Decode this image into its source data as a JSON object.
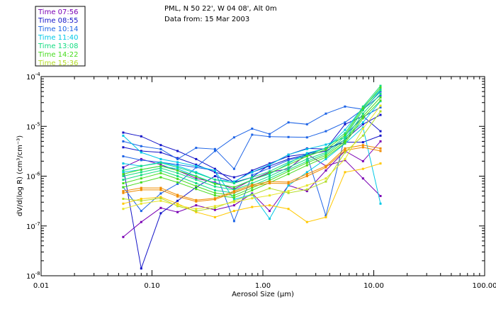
{
  "chart_data": {
    "type": "line",
    "title_line1": "PML, N 50 22', W 04 08', Alt 0m",
    "title_line2": "Data from: 15 Mar 2003",
    "xlabel": "Aerosol Size (μm)",
    "ylabel": "dV/d(log R) (cm³/cm⁻³)",
    "x_scale": "log",
    "y_scale": "log",
    "xlim": [
      0.01,
      100.0
    ],
    "ylim": [
      1e-08,
      0.0001
    ],
    "x_ticks": [
      {
        "value": 0.01,
        "label": "0.01"
      },
      {
        "value": 0.1,
        "label": "0.10"
      },
      {
        "value": 1.0,
        "label": "1.00"
      },
      {
        "value": 10.0,
        "label": "10.00"
      },
      {
        "value": 100.0,
        "label": "100.00"
      }
    ],
    "y_ticks": [
      {
        "value": 0.0001,
        "base": "10",
        "exp": "-4"
      },
      {
        "value": 1e-05,
        "base": "10",
        "exp": "-5"
      },
      {
        "value": 1e-06,
        "base": "10",
        "exp": "-6"
      },
      {
        "value": 1e-07,
        "base": "10",
        "exp": "-7"
      },
      {
        "value": 1e-08,
        "base": "10",
        "exp": "-8"
      }
    ],
    "x": [
      0.055,
      0.08,
      0.12,
      0.17,
      0.25,
      0.37,
      0.55,
      0.8,
      1.15,
      1.7,
      2.5,
      3.7,
      5.5,
      8.0,
      11.5
    ],
    "legend_position": "top-left, outside plot",
    "legend": [
      {
        "label": "Time 07:56",
        "color": "#7a00b4"
      },
      {
        "label": "Time 08:55",
        "color": "#1414c8"
      },
      {
        "label": "Time 10:14",
        "color": "#1e64e6"
      },
      {
        "label": "Time 11:40",
        "color": "#00c8e6"
      },
      {
        "label": "Time 13:08",
        "color": "#14dc82"
      },
      {
        "label": "Time 14:22",
        "color": "#46dc1e"
      },
      {
        "label": "Time 15:36",
        "color": "#b4dc28"
      }
    ],
    "series": [
      {
        "name": "07:56 a",
        "color": "#7a00b4",
        "values": [
          6e-08,
          1.2e-07,
          2.3e-07,
          1.9e-07,
          2.6e-07,
          2.1e-07,
          2.6e-07,
          4.5e-07,
          2e-07,
          6.5e-07,
          5e-07,
          1.3e-06,
          3.2e-06,
          2e-06,
          5e-06
        ]
      },
      {
        "name": "07:56 b",
        "color": "#7a00b4",
        "values": [
          1.5e-06,
          2.2e-06,
          1.7e-06,
          1.3e-06,
          9e-07,
          7.5e-07,
          5.5e-07,
          8.5e-07,
          1.2e-06,
          1.4e-06,
          2.8e-06,
          1.6e-06,
          2.1e-06,
          9e-07,
          4e-07
        ]
      },
      {
        "name": "08:55 a",
        "color": "#1414c8",
        "values": [
          7.5e-06,
          6.3e-06,
          4.2e-06,
          3.2e-06,
          2.2e-06,
          1.4e-06,
          7.5e-07,
          9.5e-07,
          1.7e-06,
          2.7e-06,
          3.6e-06,
          3.5e-06,
          1.1e-05,
          1.6e-05,
          8e-06
        ]
      },
      {
        "name": "08:55 b",
        "color": "#1414c8",
        "values": [
          3.8e-06,
          3.2e-06,
          3e-06,
          2.3e-06,
          1.7e-06,
          1.2e-06,
          9.5e-07,
          1.2e-06,
          1.6e-06,
          2.2e-06,
          2.7e-06,
          3.2e-06,
          5.4e-06,
          1.1e-05,
          1.7e-05
        ]
      },
      {
        "name": "08:55 c",
        "color": "#1414c8",
        "values": [
          1.5e-06,
          1.4e-08,
          1.8e-07,
          3.2e-07,
          6e-07,
          1e-06,
          7.5e-07,
          1.3e-06,
          1.8e-06,
          2.5e-06,
          2.8e-06,
          3.6e-06,
          4.8e-06,
          4.8e-06,
          6.5e-06
        ]
      },
      {
        "name": "10:14 a",
        "color": "#1e64e6",
        "values": [
          2.5e-06,
          2.1e-06,
          1.9e-06,
          1.7e-06,
          1.5e-06,
          1.3e-06,
          1.25e-07,
          1.05e-06,
          1.45e-06,
          2.1e-06,
          2.6e-06,
          1.6e-07,
          6.5e-06,
          1.55e-05,
          2.4e-05
        ]
      },
      {
        "name": "10:14 b",
        "color": "#1e64e6",
        "values": [
          5e-06,
          4e-06,
          3.5e-06,
          2.2e-06,
          3.7e-06,
          3.5e-06,
          1.4e-06,
          6.8e-06,
          6.2e-06,
          6.1e-06,
          6e-06,
          8e-06,
          1.2e-05,
          2.2e-05,
          4.2e-05
        ]
      },
      {
        "name": "10:14 c",
        "color": "#1e64e6",
        "values": [
          6e-07,
          2e-07,
          4.5e-07,
          7e-07,
          1.5e-06,
          3.2e-06,
          6e-06,
          9e-06,
          7e-06,
          1.2e-05,
          1.1e-05,
          1.8e-05,
          2.5e-05,
          2.2e-05,
          5e-05
        ]
      },
      {
        "name": "11:40 a",
        "color": "#00c8e6",
        "values": [
          6.5e-06,
          3e-06,
          2.2e-06,
          1.9e-06,
          1.6e-06,
          1.3e-06,
          3.4e-07,
          4.3e-07,
          1.4e-07,
          6.5e-07,
          1.2e-06,
          2.2e-06,
          4.5e-06,
          9.5e-06,
          2.8e-07
        ]
      },
      {
        "name": "11:40 b",
        "color": "#00c8e6",
        "values": [
          1.8e-06,
          1.6e-06,
          1.9e-06,
          1.6e-06,
          1.2e-06,
          8.5e-07,
          7.8e-07,
          1.2e-06,
          1.7e-06,
          2.7e-06,
          3.5e-06,
          4.3e-06,
          6e-06,
          1.2e-05,
          3.2e-05
        ]
      },
      {
        "name": "11:40 c",
        "color": "#00c8e6",
        "values": [
          1.2e-06,
          1.35e-06,
          1.6e-06,
          1.4e-06,
          1e-06,
          7.2e-07,
          6e-07,
          8.5e-07,
          1.1e-06,
          1.8e-06,
          2.9e-06,
          3.6e-06,
          8.5e-06,
          2.4e-05,
          5.5e-05
        ]
      },
      {
        "name": "13:08 a",
        "color": "#14dc82",
        "values": [
          1.3e-06,
          1.6e-06,
          1.85e-06,
          1.5e-06,
          1.15e-06,
          8.5e-07,
          7.2e-07,
          9.5e-07,
          1.25e-06,
          1.9e-06,
          2.6e-06,
          3.7e-06,
          7.3e-06,
          2.5e-05,
          6.5e-05
        ]
      },
      {
        "name": "13:08 b",
        "color": "#14dc82",
        "values": [
          1e-06,
          1.2e-06,
          1.45e-06,
          1.15e-06,
          8.5e-07,
          6.2e-07,
          5.3e-07,
          7.2e-07,
          1e-06,
          1.5e-06,
          2.2e-06,
          3e-06,
          6.2e-06,
          2.1e-05,
          5.3e-05
        ]
      },
      {
        "name": "13:08 c",
        "color": "#14dc82",
        "values": [
          8.5e-07,
          1.05e-06,
          1.3e-06,
          1e-06,
          7.2e-07,
          5.2e-07,
          4.6e-07,
          6.4e-07,
          9e-07,
          1.35e-06,
          2e-06,
          2.8e-06,
          5.5e-06,
          1.8e-05,
          4.5e-05
        ]
      },
      {
        "name": "14:22 a",
        "color": "#46dc1e",
        "values": [
          7.2e-07,
          9e-07,
          1.15e-06,
          8.8e-07,
          6.3e-07,
          4.6e-07,
          4.1e-07,
          5.8e-07,
          8.2e-07,
          1.25e-06,
          1.85e-06,
          2.6e-06,
          5e-06,
          1.6e-05,
          3.8e-05
        ]
      },
      {
        "name": "14:22 b",
        "color": "#46dc1e",
        "values": [
          6e-07,
          7.5e-07,
          9.5e-07,
          7.5e-07,
          5.5e-07,
          4.1e-07,
          3.7e-07,
          5.2e-07,
          7.4e-07,
          1.1e-06,
          1.65e-06,
          2.4e-06,
          4.6e-06,
          1.45e-05,
          3.3e-05
        ]
      },
      {
        "name": "14:22 c",
        "color": "#46dc1e",
        "values": [
          1.1e-06,
          1.35e-06,
          1.6e-06,
          1.3e-06,
          9.8e-07,
          7e-07,
          6e-07,
          8.3e-07,
          1.15e-06,
          1.7e-06,
          2.5e-06,
          3.4e-06,
          6.7e-06,
          2.3e-05,
          6e-05
        ]
      },
      {
        "name": "15:36 a",
        "color": "#f08c00",
        "values": [
          5e-07,
          5.8e-07,
          5.8e-07,
          4.2e-07,
          3.3e-07,
          3.6e-07,
          5e-07,
          6.7e-07,
          7.8e-07,
          7.6e-07,
          1.1e-06,
          1.6e-06,
          3.6e-06,
          4.2e-06,
          3.6e-06
        ]
      },
      {
        "name": "15:36 b",
        "color": "#f08c00",
        "values": [
          4.6e-07,
          5.3e-07,
          5.3e-07,
          3.9e-07,
          3.1e-07,
          3.4e-07,
          4.7e-07,
          6.3e-07,
          7.2e-07,
          7.1e-07,
          1e-06,
          1.5e-06,
          3.3e-06,
          3.8e-06,
          3.2e-06
        ]
      },
      {
        "name": "15:36 c",
        "color": "#ffc800",
        "values": [
          2.8e-07,
          3.5e-07,
          3.8e-07,
          2.8e-07,
          1.9e-07,
          1.5e-07,
          2e-07,
          2.4e-07,
          2.6e-07,
          2.2e-07,
          1.2e-07,
          1.5e-07,
          1.2e-06,
          1.4e-06,
          1.8e-06
        ]
      },
      {
        "name": "15:36 d",
        "color": "#b4dc28",
        "values": [
          3.5e-07,
          3.2e-07,
          3.6e-07,
          2.5e-07,
          2e-07,
          2.3e-07,
          3.2e-07,
          4.2e-07,
          5.7e-07,
          4.6e-07,
          5.4e-07,
          7.8e-07,
          3e-06,
          6.5e-06,
          2e-05
        ]
      },
      {
        "name": "15:36 e",
        "color": "#e6e628",
        "values": [
          2.2e-07,
          2.8e-07,
          3.2e-07,
          2.6e-07,
          2.2e-07,
          2.5e-07,
          3e-07,
          3.6e-07,
          4.1e-07,
          5e-07,
          6.5e-07,
          9e-07,
          2.2e-06,
          9e-06,
          2.6e-05
        ]
      }
    ]
  }
}
